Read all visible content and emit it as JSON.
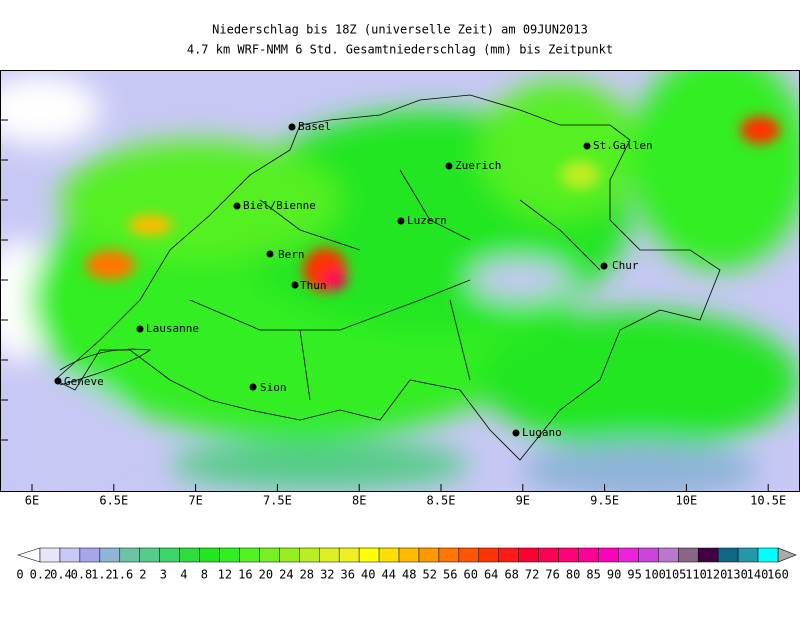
{
  "header": {
    "title_line1": "Niederschlag bis 18Z (universelle Zeit) am 09JUN2013",
    "title_line2": "4.7 km WRF-NMM 6 Std. Gesamtniederschlag (mm) bis Zeitpunkt"
  },
  "map": {
    "cities": [
      "Basel",
      "Zuerich",
      "St.Gallen",
      "Biel/Bienne",
      "Luzern",
      "Bern",
      "Chur",
      "Thun",
      "Lausanne",
      "Geneve",
      "Sion",
      "Lugano"
    ],
    "lon_labels": [
      "6E",
      "6.5E",
      "7E",
      "7.5E",
      "8E",
      "8.5E",
      "9E",
      "9.5E",
      "10E",
      "10.5E"
    ]
  },
  "colorbar": {
    "labels": [
      "0",
      "0.2",
      "0.4",
      "0.8",
      "1.2",
      "1.6",
      "2",
      "3",
      "4",
      "8",
      "12",
      "16",
      "20",
      "24",
      "28",
      "32",
      "36",
      "40",
      "44",
      "48",
      "52",
      "56",
      "60",
      "64",
      "68",
      "72",
      "76",
      "80",
      "85",
      "90",
      "95",
      "100",
      "105",
      "110",
      "120",
      "130",
      "140",
      "160"
    ],
    "colors": [
      "#e6e6fa",
      "#c8c8f5",
      "#a6a6ee",
      "#8fb4d9",
      "#6cc3a6",
      "#55cc88",
      "#3fd46a",
      "#2edc3e",
      "#22e622",
      "#33ee22",
      "#55f022",
      "#77f022",
      "#99ee22",
      "#bbee22",
      "#ddf022",
      "#eeee22",
      "#ffff00",
      "#ffdd00",
      "#ffbb00",
      "#ff9900",
      "#ff7700",
      "#ff5500",
      "#ff3300",
      "#ff1a1a",
      "#ff0033",
      "#ff0055",
      "#ff0077",
      "#ff0099",
      "#ff00bb",
      "#ee22dd",
      "#cc44dd",
      "#bb77cc",
      "#886688",
      "#440044",
      "#116688",
      "#2299aa",
      "#00ffff"
    ]
  }
}
